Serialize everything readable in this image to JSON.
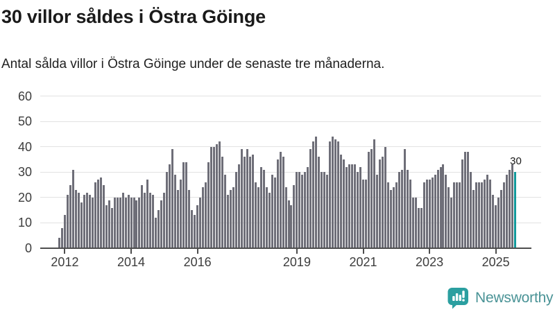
{
  "header": {
    "title": "30 villor såldes i Östra Göinge",
    "subtitle": "Antal sålda villor i Östra Göinge under de senaste tre månaderna."
  },
  "chart_data": {
    "type": "bar",
    "title": "30 villor såldes i Östra Göinge",
    "subtitle": "Antal sålda villor i Östra Göinge under de senaste tre månaderna.",
    "frequency": "monthly",
    "x_start": "2011-11",
    "x_end": "2025-08",
    "values": [
      4,
      8,
      13,
      21,
      25,
      31,
      23,
      22,
      18,
      21,
      22,
      21,
      20,
      26,
      27,
      28,
      25,
      17,
      19,
      16,
      20,
      20,
      20,
      22,
      20,
      21,
      20,
      20,
      19,
      20,
      25,
      22,
      27,
      22,
      21,
      12,
      15,
      19,
      22,
      30,
      33,
      39,
      29,
      23,
      27,
      34,
      34,
      23,
      15,
      13,
      17,
      20,
      24,
      26,
      34,
      40,
      40,
      41,
      42,
      36,
      29,
      21,
      23,
      24,
      30,
      33,
      39,
      36,
      39,
      36,
      37,
      26,
      24,
      32,
      31,
      24,
      22,
      29,
      28,
      35,
      38,
      36,
      24,
      19,
      17,
      25,
      30,
      30,
      29,
      30,
      32,
      39,
      42,
      44,
      36,
      30,
      30,
      29,
      42,
      44,
      43,
      42,
      37,
      35,
      32,
      33,
      33,
      33,
      30,
      32,
      27,
      27,
      38,
      39,
      43,
      29,
      35,
      36,
      40,
      26,
      23,
      24,
      26,
      30,
      31,
      39,
      31,
      27,
      20,
      20,
      16,
      16,
      26,
      27,
      27,
      28,
      29,
      31,
      32,
      33,
      29,
      24,
      20,
      26,
      26,
      26,
      35,
      38,
      38,
      30,
      23,
      26,
      26,
      26,
      27,
      29,
      27,
      21,
      17,
      20,
      23,
      26,
      29,
      31,
      33,
      30
    ],
    "highlight_last_bar": true,
    "highlight_label": "30",
    "ylim": [
      0,
      60
    ],
    "yticks": [
      0,
      10,
      20,
      30,
      40,
      50,
      60
    ],
    "xtick_labels": [
      "2012",
      "2014",
      "2016",
      "2019",
      "2021",
      "2023",
      "2025"
    ],
    "xtick_month_index": [
      2,
      26,
      50,
      86,
      110,
      134,
      158
    ],
    "grid": true,
    "legend": "none",
    "bar_color": "#6e6e78",
    "highlight_color": "#12999b"
  },
  "footer": {
    "brand": "Newsworthy"
  },
  "colors": {
    "background": "#ffffff",
    "bar_gray": "#6e6e78",
    "bar_teal": "#12999b",
    "gridline": "#e2e2e2",
    "axis": "#4d4d4d",
    "tick_text": "#3d3d3d",
    "title_text": "#1a1a1a",
    "logo_icon": "#2b9fa0",
    "logo_text": "#4a9396"
  }
}
